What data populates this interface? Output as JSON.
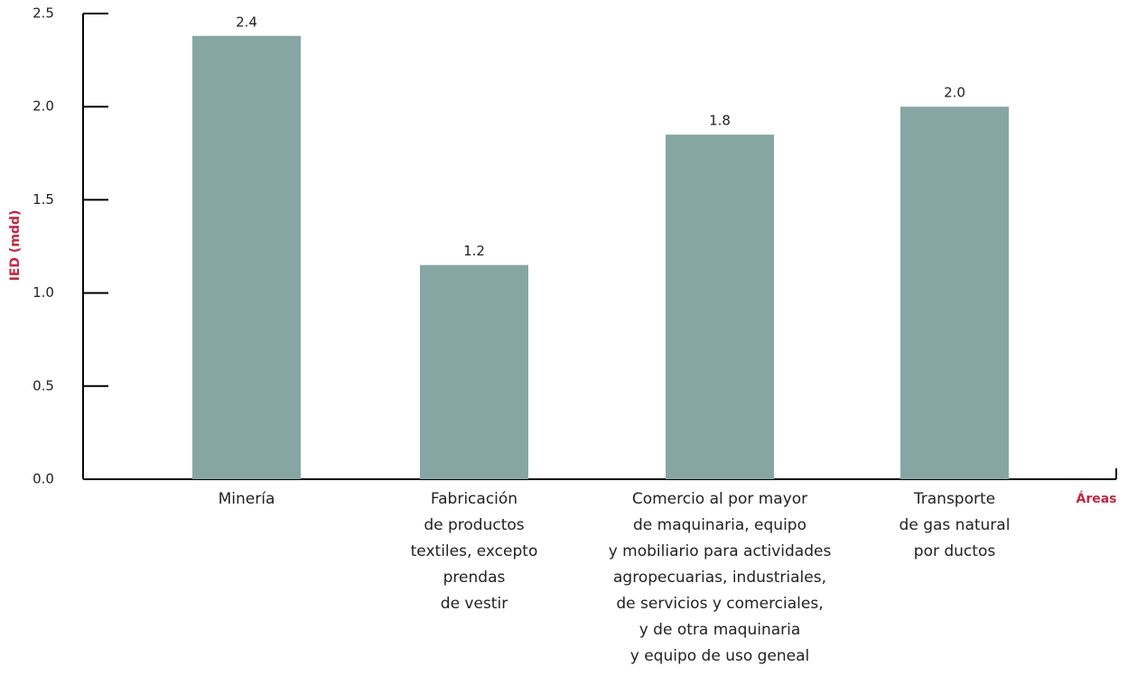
{
  "chart_data": {
    "type": "bar",
    "x_label": "Áreas",
    "y_label": "IED (mdd)",
    "categories": [
      "Minería",
      "Fabricación\nde productos\ntextiles, excepto\nprendas\nde vestir",
      "Comercio al por mayor\nde maquinaria, equipo\ny mobiliario para actividades\nagropecuarias, industriales,\nde servicios y comerciales,\ny de otra maquinaria\ny equipo de uso geneal",
      "Transporte\nde gas natural\npor ductos"
    ],
    "values": [
      2.38,
      1.15,
      1.85,
      2.0
    ],
    "value_labels": [
      "2.4",
      "1.2",
      "1.8",
      "2.0"
    ],
    "color": "#86a6a3",
    "ylim": [
      0,
      2.5
    ],
    "yticks": [
      {
        "value": 0,
        "label": "0.0"
      },
      0.5,
      {
        "value": 1,
        "label": "1.0"
      },
      1.5,
      {
        "value": 2,
        "label": "2.0"
      },
      2.5
    ]
  }
}
